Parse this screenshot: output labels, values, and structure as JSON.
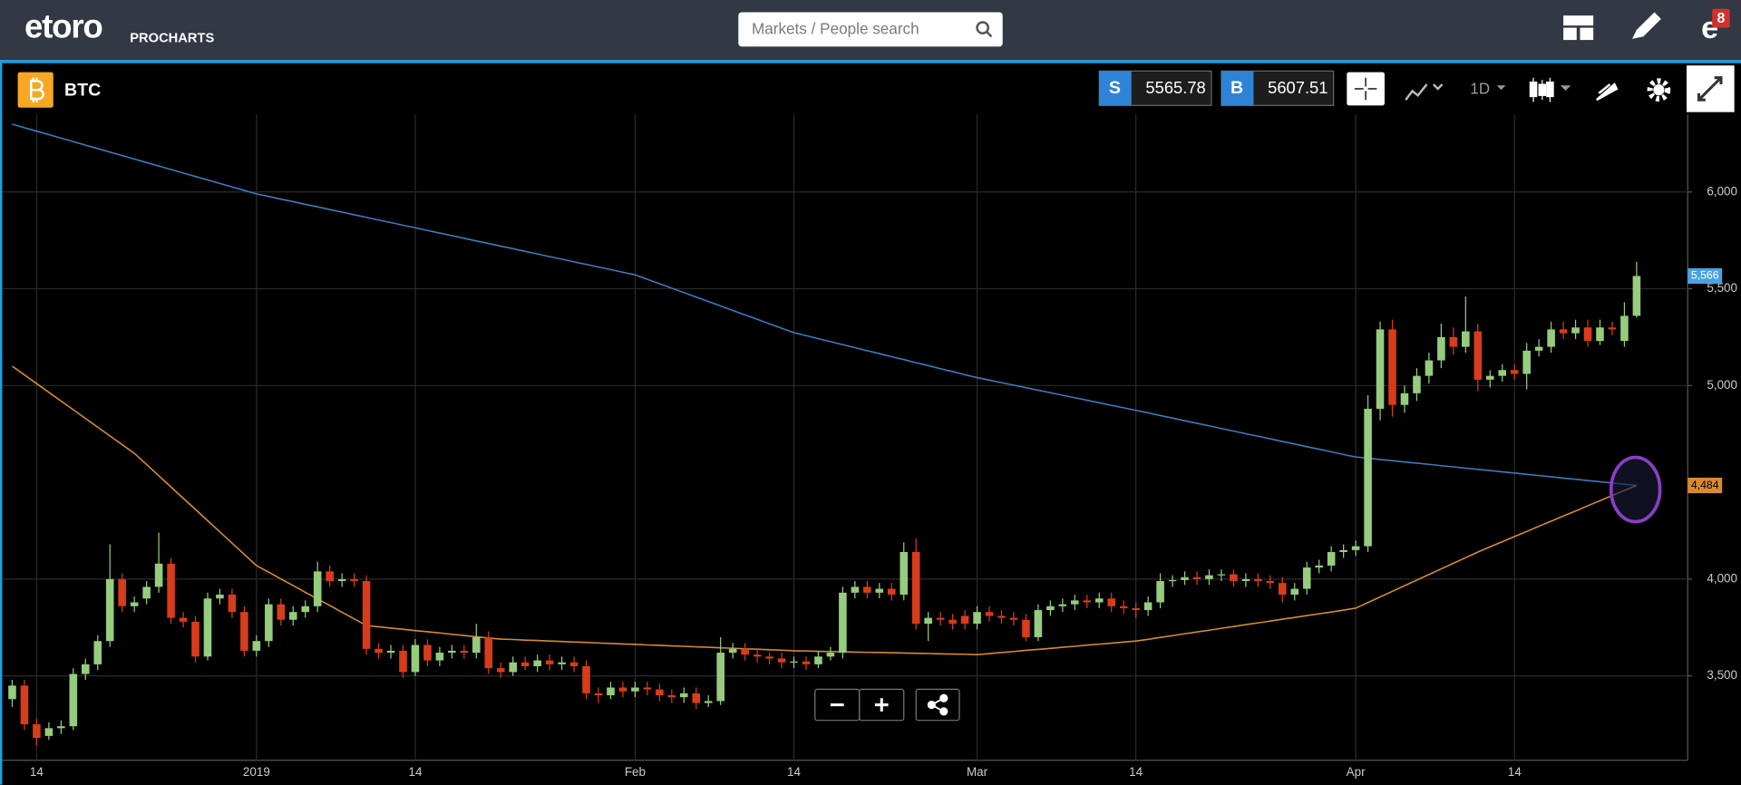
{
  "header": {
    "logo": "etoro",
    "subtitle": "PROCHARTS",
    "search_placeholder": "Markets / People search",
    "notifications": "8"
  },
  "toolbar": {
    "symbol": "BTC",
    "sell_label": "S",
    "sell_price": 5565.78,
    "buy_label": "B",
    "buy_price": 5607.51,
    "interval": "1D"
  },
  "chart_data": {
    "type": "candlestick",
    "categories": [
      null,
      null,
      "14",
      null,
      null,
      null,
      null,
      null,
      null,
      null,
      null,
      null,
      null,
      null,
      null,
      null,
      null,
      null,
      null,
      null,
      "2019",
      null,
      null,
      null,
      null,
      null,
      null,
      null,
      null,
      null,
      null,
      null,
      null,
      "14",
      null,
      null,
      null,
      null,
      null,
      null,
      null,
      null,
      null,
      null,
      null,
      null,
      null,
      null,
      null,
      null,
      null,
      "Feb",
      null,
      null,
      null,
      null,
      null,
      null,
      null,
      null,
      null,
      null,
      null,
      null,
      "14",
      null,
      null,
      null,
      null,
      null,
      null,
      null,
      null,
      null,
      null,
      null,
      null,
      null,
      null,
      "Mar",
      null,
      null,
      null,
      null,
      null,
      null,
      null,
      null,
      null,
      null,
      null,
      null,
      "14",
      null,
      null,
      null,
      null,
      null,
      null,
      null,
      null,
      null,
      null,
      null,
      null,
      null,
      null,
      null,
      null,
      null,
      "Apr",
      null,
      null,
      null,
      null,
      null,
      null,
      null,
      null,
      null,
      null,
      null,
      null,
      "14",
      null,
      null,
      null,
      null,
      null,
      null,
      null,
      null,
      null,
      null
    ],
    "open": [
      3380,
      3450,
      3250,
      3190,
      3230,
      3240,
      3510,
      3560,
      3680,
      4000,
      3860,
      3900,
      3960,
      4080,
      3800,
      3780,
      3600,
      3900,
      3920,
      3830,
      3630,
      3680,
      3870,
      3790,
      3830,
      3860,
      4040,
      3990,
      4000,
      3990,
      3640,
      3620,
      3630,
      3520,
      3660,
      3580,
      3620,
      3630,
      3620,
      3700,
      3540,
      3520,
      3570,
      3550,
      3580,
      3560,
      3570,
      3550,
      3410,
      3400,
      3440,
      3420,
      3440,
      3430,
      3400,
      3390,
      3410,
      3360,
      3370,
      3620,
      3640,
      3610,
      3600,
      3590,
      3570,
      3575,
      3560,
      3600,
      3620,
      3930,
      3960,
      3930,
      3950,
      3920,
      4140,
      3770,
      3800,
      3790,
      3810,
      3770,
      3830,
      3810,
      3800,
      3790,
      3700,
      3840,
      3860,
      3870,
      3890,
      3880,
      3900,
      3860,
      3850,
      3840,
      3880,
      3990,
      3995,
      4010,
      4000,
      4020,
      4025,
      3990,
      4000,
      3990,
      3980,
      3920,
      3950,
      4060,
      4070,
      4140,
      4150,
      4170,
      4880,
      5290,
      4900,
      4960,
      5050,
      5130,
      5250,
      5200,
      5280,
      5030,
      5050,
      5080,
      5060,
      5180,
      5200,
      5290,
      5270,
      5300,
      5230,
      5300,
      5230,
      5360
    ],
    "high": [
      3480,
      3480,
      3280,
      3260,
      3270,
      3540,
      3590,
      3710,
      4180,
      4030,
      3910,
      3990,
      4240,
      4110,
      3830,
      3810,
      3930,
      3950,
      3950,
      3860,
      3710,
      3900,
      3900,
      3860,
      3890,
      4090,
      4070,
      4030,
      4030,
      4020,
      3670,
      3660,
      3660,
      3690,
      3690,
      3650,
      3660,
      3660,
      3770,
      3730,
      3570,
      3600,
      3600,
      3610,
      3610,
      3600,
      3600,
      3580,
      3440,
      3470,
      3470,
      3470,
      3470,
      3460,
      3430,
      3440,
      3440,
      3400,
      3700,
      3670,
      3670,
      3640,
      3620,
      3620,
      3600,
      3600,
      3630,
      3650,
      3960,
      3990,
      3990,
      3980,
      3980,
      4190,
      4210,
      3830,
      3830,
      3820,
      3840,
      3860,
      3860,
      3840,
      3830,
      3820,
      3870,
      3890,
      3900,
      3920,
      3920,
      3930,
      3930,
      3890,
      3880,
      3910,
      4030,
      4020,
      4040,
      4040,
      4050,
      4050,
      4050,
      4030,
      4030,
      4020,
      4010,
      3980,
      4090,
      4100,
      4170,
      4180,
      4200,
      4950,
      5330,
      5340,
      5000,
      5090,
      5170,
      5320,
      5300,
      5460,
      5320,
      5080,
      5110,
      5110,
      5220,
      5240,
      5330,
      5330,
      5340,
      5340,
      5340,
      5330,
      5430,
      5640
    ],
    "low": [
      3340,
      3220,
      3140,
      3170,
      3200,
      3220,
      3480,
      3530,
      3650,
      3830,
      3830,
      3870,
      3930,
      3770,
      3750,
      3570,
      3580,
      3870,
      3800,
      3600,
      3600,
      3650,
      3760,
      3760,
      3800,
      3830,
      3960,
      3960,
      3960,
      3610,
      3590,
      3590,
      3490,
      3500,
      3550,
      3550,
      3590,
      3590,
      3590,
      3510,
      3490,
      3500,
      3530,
      3520,
      3530,
      3530,
      3520,
      3380,
      3360,
      3380,
      3390,
      3390,
      3400,
      3370,
      3360,
      3360,
      3330,
      3340,
      3350,
      3590,
      3580,
      3570,
      3560,
      3540,
      3540,
      3530,
      3540,
      3580,
      3590,
      3900,
      3900,
      3900,
      3890,
      3890,
      3740,
      3680,
      3760,
      3740,
      3740,
      3740,
      3780,
      3770,
      3760,
      3680,
      3680,
      3810,
      3830,
      3840,
      3850,
      3850,
      3830,
      3820,
      3800,
      3810,
      3850,
      3960,
      3970,
      3970,
      3970,
      3990,
      3960,
      3960,
      3960,
      3950,
      3880,
      3890,
      3920,
      4030,
      4040,
      4110,
      4120,
      4140,
      4820,
      4840,
      4860,
      4920,
      5010,
      5090,
      5160,
      5170,
      4970,
      4990,
      5020,
      5030,
      4980,
      5150,
      5170,
      5240,
      5240,
      5200,
      5210,
      5260,
      5200,
      5350
    ],
    "close": [
      3450,
      3250,
      3180,
      3230,
      3240,
      3510,
      3560,
      3680,
      4000,
      3860,
      3880,
      3960,
      4080,
      3800,
      3780,
      3600,
      3900,
      3920,
      3830,
      3630,
      3680,
      3870,
      3790,
      3830,
      3860,
      4040,
      3990,
      4000,
      3990,
      3640,
      3620,
      3630,
      3520,
      3660,
      3580,
      3620,
      3630,
      3620,
      3700,
      3540,
      3520,
      3570,
      3550,
      3580,
      3560,
      3570,
      3550,
      3410,
      3400,
      3440,
      3420,
      3440,
      3430,
      3400,
      3390,
      3410,
      3360,
      3370,
      3620,
      3640,
      3610,
      3600,
      3590,
      3570,
      3575,
      3560,
      3600,
      3620,
      3930,
      3960,
      3930,
      3950,
      3920,
      4140,
      3770,
      3800,
      3790,
      3770,
      3770,
      3830,
      3810,
      3800,
      3790,
      3700,
      3840,
      3860,
      3870,
      3890,
      3880,
      3900,
      3860,
      3850,
      3840,
      3880,
      3990,
      3995,
      4010,
      4000,
      4020,
      4025,
      3990,
      4000,
      3990,
      3980,
      3920,
      3950,
      4060,
      4070,
      4140,
      4150,
      4170,
      4880,
      5290,
      4900,
      4960,
      5050,
      5130,
      5250,
      5200,
      5280,
      5030,
      5050,
      5080,
      5060,
      5180,
      5200,
      5290,
      5270,
      5300,
      5230,
      5300,
      5290,
      5360,
      5566
    ],
    "close_label": "5,566",
    "up_color": "#95cc7e",
    "down_color": "#d83c1a",
    "close_label_color": "#4aa3df",
    "overlays": [
      {
        "color": "#3b7cc0",
        "values": [
          6350,
          6332,
          6314,
          6296,
          6278,
          6260,
          6242,
          6224,
          6206,
          6188,
          6170,
          6152,
          6134,
          6116,
          6098,
          6080,
          6062,
          6044,
          6026,
          6008,
          5990,
          5977,
          5963,
          5950,
          5936,
          5923,
          5909,
          5896,
          5882,
          5869,
          5855,
          5842,
          5828,
          5815,
          5801,
          5788,
          5774,
          5761,
          5747,
          5734,
          5720,
          5707,
          5693,
          5680,
          5666,
          5653,
          5639,
          5626,
          5612,
          5599,
          5585,
          5572,
          5549,
          5526,
          5503,
          5480,
          5457,
          5434,
          5411,
          5388,
          5365,
          5342,
          5319,
          5296,
          5273,
          5258,
          5242,
          5227,
          5211,
          5196,
          5180,
          5165,
          5149,
          5134,
          5118,
          5103,
          5087,
          5072,
          5056,
          5041,
          5028,
          5015,
          5002,
          4989,
          4976,
          4963,
          4950,
          4937,
          4924,
          4911,
          4898,
          4885,
          4872,
          4859,
          4845,
          4832,
          4818,
          4805,
          4792,
          4778,
          4765,
          4751,
          4738,
          4725,
          4711,
          4698,
          4684,
          4671,
          4658,
          4644,
          4631,
          4625,
          4618,
          4612,
          4605,
          4599,
          4593,
          4586,
          4580,
          4573,
          4567,
          4561,
          4554,
          4548,
          4541,
          4535,
          4529,
          4522,
          4516,
          4509,
          4503,
          4497,
          4490,
          4484
        ]
      },
      {
        "color": "#d98a2e",
        "last_label": "4,484",
        "values": [
          5100,
          5055,
          5010,
          4965,
          4920,
          4875,
          4830,
          4785,
          4740,
          4695,
          4650,
          4592,
          4534,
          4476,
          4418,
          4360,
          4302,
          4244,
          4186,
          4128,
          4070,
          4036,
          4001,
          3967,
          3932,
          3898,
          3864,
          3829,
          3795,
          3760,
          3754,
          3747,
          3741,
          3734,
          3728,
          3722,
          3715,
          3709,
          3702,
          3696,
          3690,
          3688,
          3685,
          3683,
          3680,
          3678,
          3675,
          3673,
          3670,
          3668,
          3665,
          3663,
          3660,
          3658,
          3655,
          3653,
          3650,
          3648,
          3645,
          3643,
          3640,
          3638,
          3635,
          3633,
          3630,
          3629,
          3627,
          3626,
          3625,
          3623,
          3622,
          3621,
          3620,
          3618,
          3617,
          3616,
          3614,
          3613,
          3612,
          3610,
          3615,
          3621,
          3626,
          3632,
          3637,
          3642,
          3648,
          3653,
          3659,
          3664,
          3669,
          3675,
          3680,
          3689,
          3699,
          3708,
          3718,
          3727,
          3736,
          3746,
          3755,
          3765,
          3774,
          3783,
          3793,
          3802,
          3812,
          3821,
          3830,
          3840,
          3850,
          3879,
          3908,
          3937,
          3966,
          3995,
          4024,
          4053,
          4082,
          4111,
          4140,
          4167,
          4193,
          4220,
          4246,
          4273,
          4299,
          4326,
          4352,
          4379,
          4405,
          4432,
          4458,
          4484
        ]
      }
    ],
    "ylim": [
      3064,
      6401
    ],
    "yticks": [
      {
        "value": 3500,
        "label": "3,500"
      },
      {
        "value": 4000,
        "label": "4,000"
      },
      {
        "value": 5000,
        "label": "5,000"
      },
      {
        "value": 5500,
        "label": "5,500"
      },
      {
        "value": 6000,
        "label": "6,000"
      }
    ],
    "grid": true
  }
}
